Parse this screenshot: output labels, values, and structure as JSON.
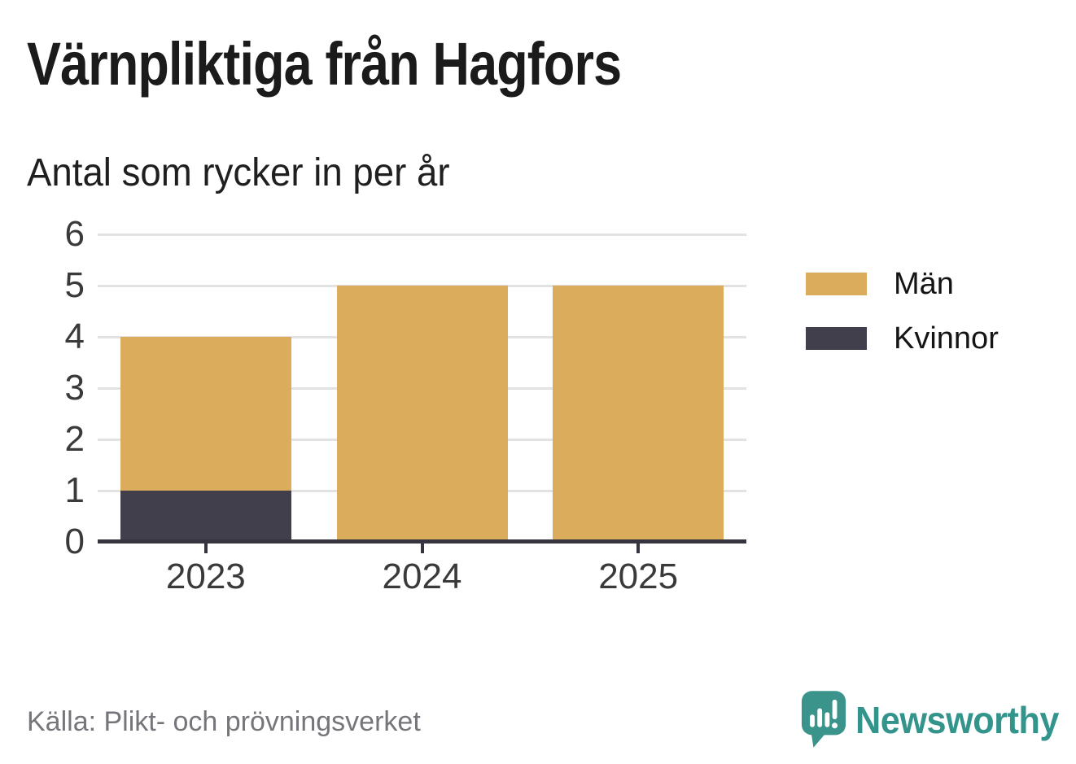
{
  "header": {
    "title": "Värnpliktiga från Hagfors",
    "subtitle": "Antal som rycker in per år"
  },
  "chart_data": {
    "type": "bar",
    "stacked": true,
    "title": "Värnpliktiga från Hagfors",
    "subtitle": "Antal som rycker in per år",
    "categories": [
      "2023",
      "2024",
      "2025"
    ],
    "series": [
      {
        "name": "Män",
        "color": "#DBAC5B",
        "values": [
          3,
          5,
          5
        ]
      },
      {
        "name": "Kvinnor",
        "color": "#413F4C",
        "values": [
          1,
          0,
          0
        ]
      }
    ],
    "stack_order_bottom_to_top": [
      "Kvinnor",
      "Män"
    ],
    "xlabel": "",
    "ylabel": "",
    "ylim": [
      0,
      6
    ],
    "yticks": [
      0,
      1,
      2,
      3,
      4,
      5,
      6
    ],
    "grid": true,
    "legend_position": "right"
  },
  "legend": {
    "items": [
      {
        "label": "Män",
        "color": "#DBAC5B"
      },
      {
        "label": "Kvinnor",
        "color": "#413F4C"
      }
    ]
  },
  "footer": {
    "source": "Källa: Plikt- och prövningsverket",
    "brand": "Newsworthy"
  },
  "colors": {
    "men": "#DBAC5B",
    "women": "#413F4C",
    "axis": "#35343f",
    "gridline": "#e2e2e2",
    "tick_text": "#3a3a3a",
    "source_text": "#76757c",
    "brand_teal": "#33948c"
  }
}
